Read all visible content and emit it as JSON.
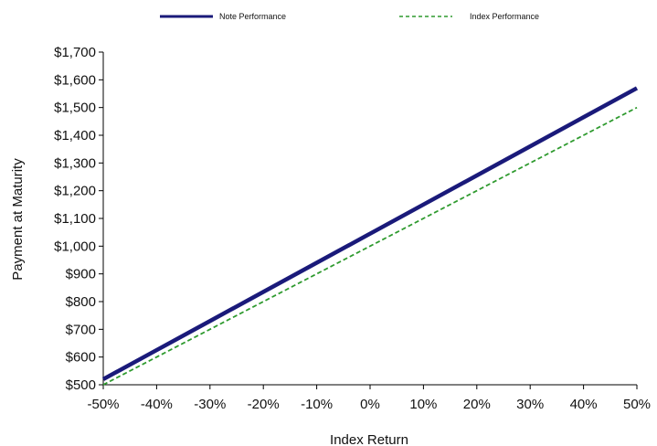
{
  "chart_data": {
    "type": "line",
    "x": [
      -50,
      -40,
      -30,
      -20,
      -10,
      0,
      10,
      20,
      30,
      40,
      50
    ],
    "xlim": [
      -50,
      50
    ],
    "ylim": [
      500,
      1700
    ],
    "xticks": [
      "-50%",
      "-40%",
      "-30%",
      "-20%",
      "-10%",
      "0%",
      "10%",
      "20%",
      "30%",
      "40%",
      "50%"
    ],
    "yticks": [
      "$500",
      "$600",
      "$700",
      "$800",
      "$900",
      "$1,000",
      "$1,100",
      "$1,200",
      "$1,300",
      "$1,400",
      "$1,500",
      "$1,600",
      "$1,700"
    ],
    "xlabel": "Index Return",
    "ylabel": "Payment at Maturity",
    "grid": false,
    "legend_position": "top",
    "series": [
      {
        "name": "Note Performance",
        "color": "#1a1a7a",
        "style": "solid",
        "values": [
          520,
          625,
          730,
          835,
          940,
          1045,
          1150,
          1255,
          1360,
          1465,
          1570
        ]
      },
      {
        "name": "Index Performance",
        "color": "#2e9a2e",
        "style": "dashed",
        "values": [
          500,
          600,
          700,
          800,
          900,
          1000,
          1100,
          1200,
          1300,
          1400,
          1500
        ]
      }
    ]
  }
}
